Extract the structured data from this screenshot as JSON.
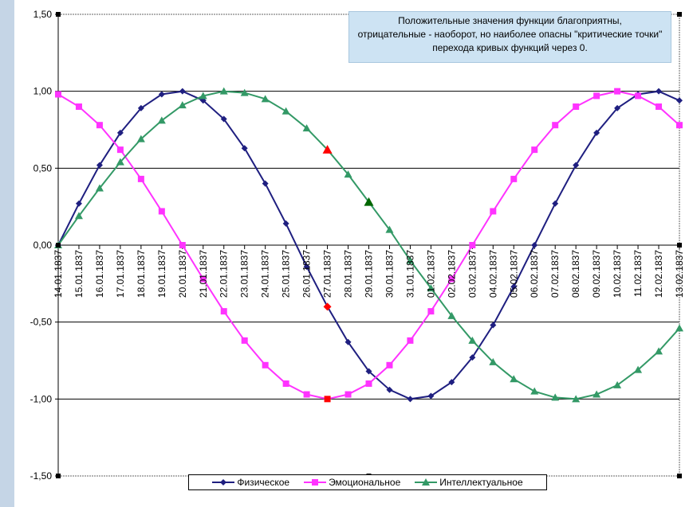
{
  "chart_data": {
    "type": "line",
    "annotation": [
      "Положительные значения функции благоприятны,",
      "отрицательные - наоборот, но наиболее опасны \"критические точки\"",
      "перехода кривых функций через 0."
    ],
    "ylim": [
      -1.5,
      1.5
    ],
    "yticks": [
      "1,50",
      "1,00",
      "0,50",
      "0,00",
      "-0,50",
      "-1,00",
      "-1,50"
    ],
    "grid": true,
    "legend_position": "bottom",
    "categories": [
      "14.01.1837",
      "15.01.1837",
      "16.01.1837",
      "17.01.1837",
      "18.01.1837",
      "19.01.1837",
      "20.01.1837",
      "21.01.1837",
      "22.01.1837",
      "23.01.1837",
      "24.01.1837",
      "25.01.1837",
      "26.01.1837",
      "27.01.1837",
      "28.01.1837",
      "29.01.1837",
      "30.01.1837",
      "31.01.1837",
      "01.02.1837",
      "02.02.1837",
      "03.02.1837",
      "04.02.1837",
      "05.02.1837",
      "06.02.1837",
      "07.02.1837",
      "08.02.1837",
      "09.02.1837",
      "10.02.1837",
      "11.02.1837",
      "12.02.1837",
      "13.02.1837"
    ],
    "series": [
      {
        "name": "Физическое",
        "color": "#1f1f80",
        "marker": "diamond",
        "values": [
          0,
          0.27,
          0.52,
          0.73,
          0.89,
          0.98,
          1.0,
          0.94,
          0.82,
          0.63,
          0.4,
          0.14,
          -0.14,
          -0.4,
          -0.63,
          -0.82,
          -0.94,
          -1.0,
          -0.98,
          -0.89,
          -0.73,
          -0.52,
          -0.27,
          0,
          0.27,
          0.52,
          0.73,
          0.89,
          0.98,
          1.0,
          0.94
        ]
      },
      {
        "name": "Эмоциональное",
        "color": "#ff33ff",
        "marker": "square",
        "values": [
          0.98,
          0.9,
          0.78,
          0.62,
          0.43,
          0.22,
          0,
          -0.22,
          -0.43,
          -0.62,
          -0.78,
          -0.9,
          -0.97,
          -1.0,
          -0.97,
          -0.9,
          -0.78,
          -0.62,
          -0.43,
          -0.22,
          0,
          0.22,
          0.43,
          0.62,
          0.78,
          0.9,
          0.97,
          1.0,
          0.97,
          0.9,
          0.78
        ]
      },
      {
        "name": "Интеллектуальное",
        "color": "#339966",
        "marker": "triangle",
        "values": [
          0,
          0.19,
          0.37,
          0.54,
          0.69,
          0.81,
          0.91,
          0.97,
          1.0,
          0.99,
          0.95,
          0.87,
          0.76,
          0.62,
          0.46,
          0.28,
          0.1,
          -0.1,
          -0.28,
          -0.46,
          -0.62,
          -0.76,
          -0.87,
          -0.95,
          -0.99,
          -1.0,
          -0.97,
          -0.91,
          -0.81,
          -0.69,
          -0.54
        ]
      }
    ],
    "highlights": [
      {
        "series": 2,
        "index": 13,
        "color": "#ff0000"
      },
      {
        "series": 0,
        "index": 13,
        "color": "#ff0000"
      },
      {
        "series": 1,
        "index": 13,
        "color": "#ff0000"
      },
      {
        "series": 2,
        "index": 15,
        "color": "#006600"
      }
    ]
  }
}
